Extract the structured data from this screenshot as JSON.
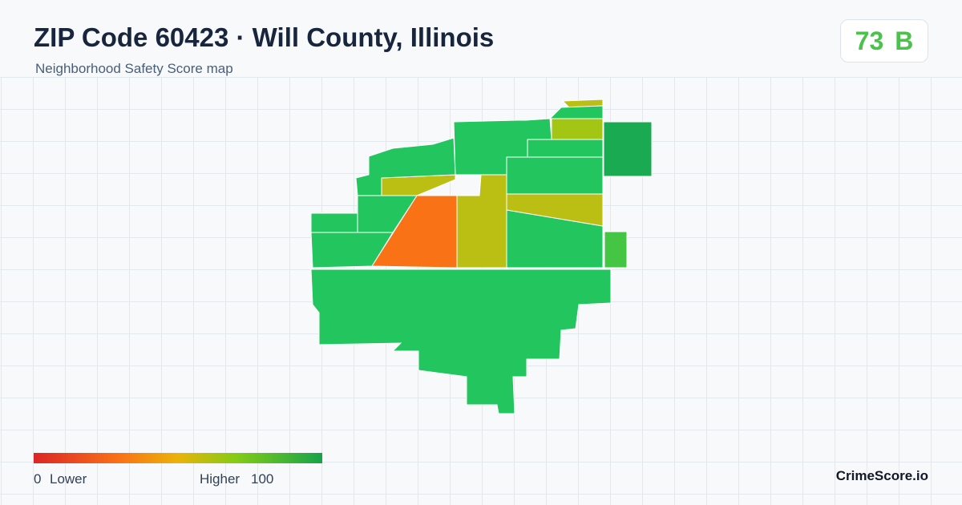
{
  "header": {
    "title": "ZIP Code 60423 · Will County, Illinois",
    "subtitle": "Neighborhood Safety Score map"
  },
  "badge": {
    "score": 73,
    "grade": "B"
  },
  "legend": {
    "min": 0,
    "min_label": "Lower",
    "max_label": "Higher",
    "max": 100
  },
  "brand": "CrimeScore.io"
}
